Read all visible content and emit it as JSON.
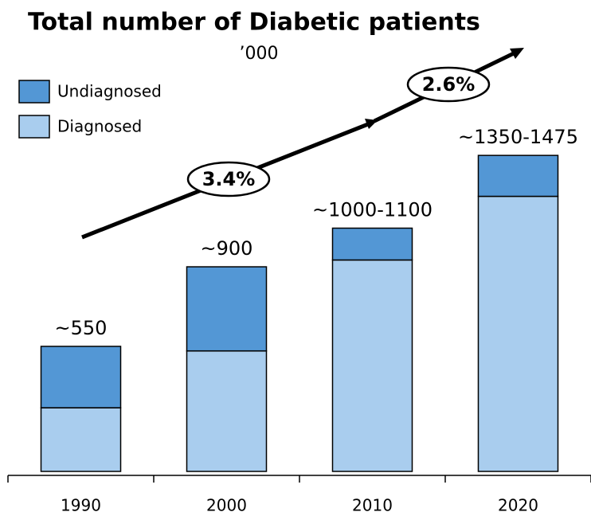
{
  "chart_data": {
    "type": "stacked_bar",
    "title": "Total number of Diabetic patients",
    "subtitle": "’000",
    "categories": [
      "1990",
      "2000",
      "2010",
      "2020"
    ],
    "series": [
      {
        "name": "Undiagnosed",
        "color": "#5397d5",
        "values": [
          270,
          370,
          140,
          180
        ]
      },
      {
        "name": "Diagnosed",
        "color": "#a9cdee",
        "values": [
          280,
          530,
          930,
          1210
        ]
      }
    ],
    "total_labels": [
      "~550",
      "~900",
      "~1000-1100",
      "~1350-1475"
    ],
    "growth_labels": [
      "3.4%",
      "2.6%"
    ],
    "ylim": [
      0,
      2000
    ]
  }
}
